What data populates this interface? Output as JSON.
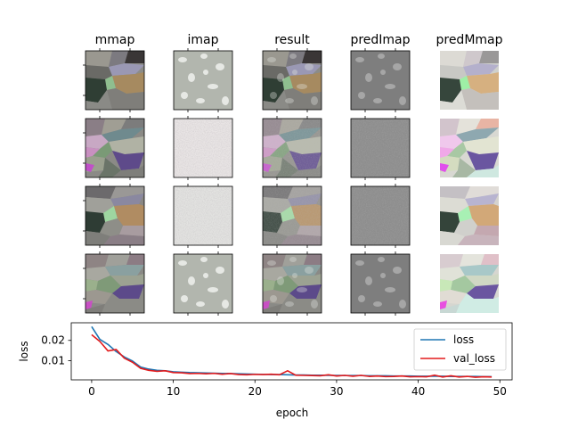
{
  "columns": [
    "mmap",
    "imap",
    "result",
    "predImap",
    "predMmap"
  ],
  "chart_data": {
    "type": "line",
    "xlabel": "epoch",
    "ylabel": "loss",
    "xlim": [
      -2.5,
      51.5
    ],
    "ylim": [
      0.0005,
      0.0287
    ],
    "xticks": [
      "0",
      "10",
      "20",
      "30",
      "40",
      "50"
    ],
    "xtick_values": [
      0,
      10,
      20,
      30,
      40,
      50
    ],
    "yticks": [
      "0.01",
      "0.02"
    ],
    "ytick_values": [
      0.01,
      0.02
    ],
    "legend_position": "upper right",
    "grid": false,
    "x": [
      0,
      1,
      2,
      3,
      4,
      5,
      6,
      7,
      8,
      9,
      10,
      11,
      12,
      13,
      14,
      15,
      16,
      17,
      18,
      19,
      20,
      21,
      22,
      23,
      24,
      25,
      26,
      27,
      28,
      29,
      30,
      31,
      32,
      33,
      34,
      35,
      36,
      37,
      38,
      39,
      40,
      41,
      42,
      43,
      44,
      45,
      46,
      47,
      48,
      49
    ],
    "series": [
      {
        "name": "loss",
        "color": "#1f77b4",
        "values": [
          0.0268,
          0.0205,
          0.018,
          0.0145,
          0.0118,
          0.0098,
          0.0068,
          0.0058,
          0.0052,
          0.005,
          0.0045,
          0.0043,
          0.0041,
          0.004,
          0.0039,
          0.0038,
          0.0037,
          0.0036,
          0.0035,
          0.0034,
          0.0033,
          0.0032,
          0.0031,
          0.0031,
          0.003,
          0.0029,
          0.0029,
          0.0028,
          0.0028,
          0.0027,
          0.0027,
          0.0026,
          0.0026,
          0.0026,
          0.0025,
          0.0025,
          0.0025,
          0.0024,
          0.0024,
          0.0024,
          0.0023,
          0.0023,
          0.0023,
          0.0023,
          0.0022,
          0.0022,
          0.0022,
          0.0022,
          0.0021,
          0.0021
        ]
      },
      {
        "name": "val_loss",
        "color": "#e31a1c",
        "values": [
          0.0228,
          0.0195,
          0.0148,
          0.0155,
          0.0112,
          0.0092,
          0.0062,
          0.0052,
          0.0047,
          0.005,
          0.0041,
          0.004,
          0.0036,
          0.0037,
          0.0035,
          0.0037,
          0.0033,
          0.0036,
          0.0031,
          0.003,
          0.0032,
          0.0031,
          0.0033,
          0.003,
          0.005,
          0.0028,
          0.0027,
          0.0026,
          0.0025,
          0.003,
          0.0024,
          0.0027,
          0.0023,
          0.0027,
          0.0022,
          0.0024,
          0.0021,
          0.0022,
          0.0024,
          0.002,
          0.0021,
          0.002,
          0.0028,
          0.0019,
          0.0025,
          0.0019,
          0.0022,
          0.0018,
          0.002,
          0.0019
        ]
      }
    ]
  }
}
